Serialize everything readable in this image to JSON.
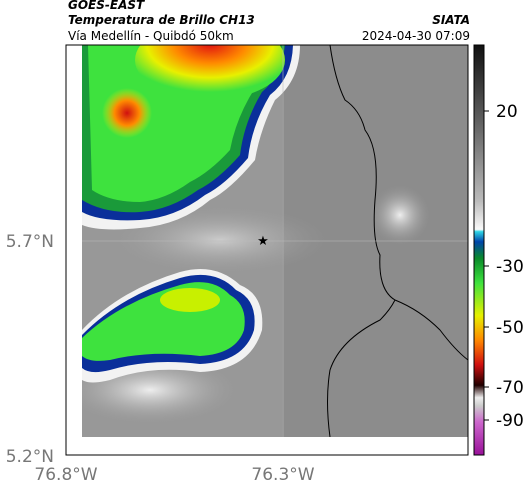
{
  "header": {
    "satellite": "GOES-EAST",
    "product": "Temperatura de Brillo CH13",
    "route": "Vía Medellín - Quibdó 50km",
    "source": "SIATA",
    "timestamp": "2024-04-30 07:09"
  },
  "map": {
    "lat_labels": [
      "5.7°N",
      "5.2°N"
    ],
    "lon_labels": [
      "76.8°W",
      "76.3°W"
    ]
  },
  "colorbar": {
    "tick_labels": [
      "20",
      "-30",
      "-50",
      "-70",
      "-90"
    ]
  }
}
